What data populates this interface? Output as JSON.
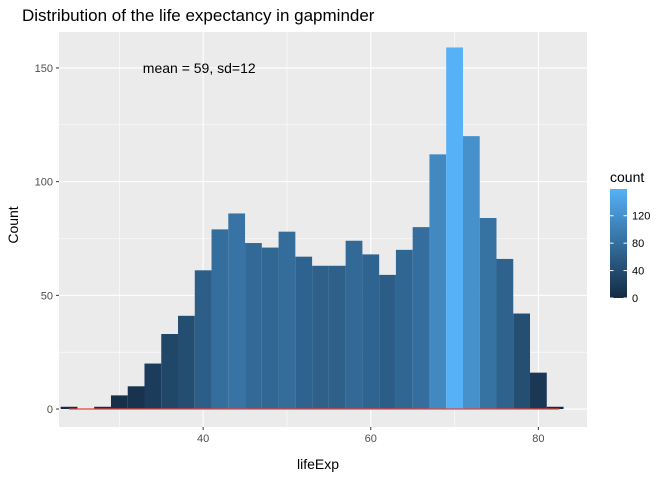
{
  "chart_data": {
    "type": "bar",
    "title": "Distribution of the life expectancy in gapminder",
    "xlabel": "lifeExp",
    "ylabel": "Count",
    "annotation": "mean = 59, sd=12",
    "xlim": [
      22.8,
      85.8
    ],
    "ylim": [
      -7.9,
      165.8
    ],
    "x_ticks": [
      40,
      60,
      80
    ],
    "y_ticks": [
      0,
      50,
      100,
      150
    ],
    "grid": true,
    "bin_width": 2,
    "bins": [
      {
        "x": 24,
        "count": 1
      },
      {
        "x": 26,
        "count": 0
      },
      {
        "x": 28,
        "count": 1
      },
      {
        "x": 30,
        "count": 6
      },
      {
        "x": 32,
        "count": 10
      },
      {
        "x": 34,
        "count": 20
      },
      {
        "x": 36,
        "count": 33
      },
      {
        "x": 38,
        "count": 41
      },
      {
        "x": 40,
        "count": 61
      },
      {
        "x": 42,
        "count": 79
      },
      {
        "x": 44,
        "count": 86
      },
      {
        "x": 46,
        "count": 73
      },
      {
        "x": 48,
        "count": 71
      },
      {
        "x": 50,
        "count": 78
      },
      {
        "x": 52,
        "count": 67
      },
      {
        "x": 54,
        "count": 63
      },
      {
        "x": 56,
        "count": 63
      },
      {
        "x": 58,
        "count": 74
      },
      {
        "x": 60,
        "count": 68
      },
      {
        "x": 62,
        "count": 59
      },
      {
        "x": 64,
        "count": 70
      },
      {
        "x": 66,
        "count": 80
      },
      {
        "x": 68,
        "count": 112
      },
      {
        "x": 70,
        "count": 159
      },
      {
        "x": 72,
        "count": 120
      },
      {
        "x": 74,
        "count": 84
      },
      {
        "x": 76,
        "count": 66
      },
      {
        "x": 78,
        "count": 42
      },
      {
        "x": 80,
        "count": 16
      },
      {
        "x": 82,
        "count": 1
      }
    ],
    "density_line": {
      "x_start": 24,
      "x_end": 82.5,
      "value": 0,
      "color": "#e8413a"
    },
    "legend": {
      "title": "count",
      "placement": "right",
      "ticks": [
        0,
        40,
        80,
        120
      ],
      "range": [
        0,
        159
      ],
      "low_color": "#132b43",
      "high_color": "#56b1f7"
    },
    "colors": {
      "panel": "#ebebeb",
      "grid_major": "#ffffff",
      "bar_outline": "none"
    }
  }
}
